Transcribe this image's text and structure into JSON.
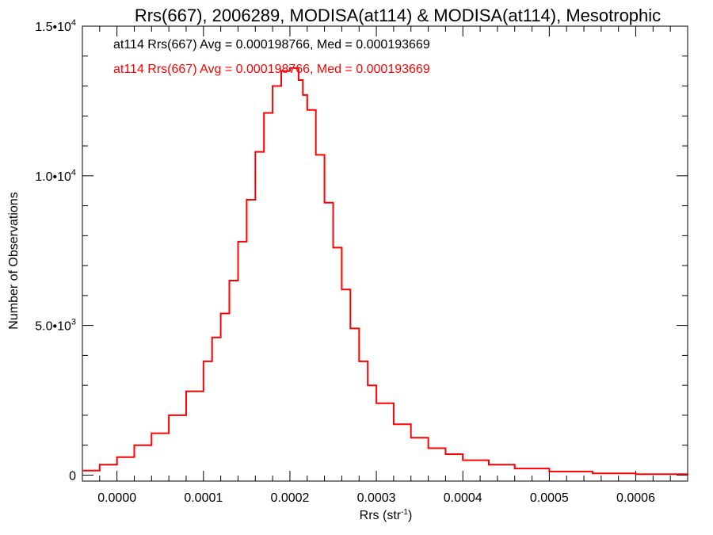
{
  "chart_data": {
    "type": "line",
    "title": "Rrs(667), 2006289, MODISA(at114) & MODISA(at114), Mesotrophic",
    "xlabel": {
      "base": "Rrs (str",
      "sup": "-1",
      "close": ")"
    },
    "ylabel": "Number of Observations",
    "xlim": [
      -4e-05,
      0.00066
    ],
    "ylim": [
      -200,
      15000
    ],
    "x_ticks": [
      {
        "value": 0.0,
        "label": "0.0000"
      },
      {
        "value": 0.0001,
        "label": "0.0001"
      },
      {
        "value": 0.0002,
        "label": "0.0002"
      },
      {
        "value": 0.0003,
        "label": "0.0003"
      },
      {
        "value": 0.0004,
        "label": "0.0004"
      },
      {
        "value": 0.0005,
        "label": "0.0005"
      },
      {
        "value": 0.0006,
        "label": "0.0006"
      }
    ],
    "y_ticks": [
      {
        "value": 0,
        "base": "0",
        "exp": ""
      },
      {
        "value": 5000,
        "base": "5.0•10",
        "exp": "3"
      },
      {
        "value": 10000,
        "base": "1.0•10",
        "exp": "4"
      },
      {
        "value": 15000,
        "base": "1.5•10",
        "exp": "4"
      }
    ],
    "legend": [
      {
        "text": "at114 Rrs(667) Avg = 0.000198766, Med = 0.000193669",
        "color": "#000000"
      },
      {
        "text": "at114 Rrs(667) Avg = 0.000198766, Med = 0.000193669",
        "color": "#ff0000"
      }
    ],
    "grid": false,
    "series": [
      {
        "color": "#ff0000",
        "step": true,
        "x": [
          -4e-05,
          -2e-05,
          0.0,
          2e-05,
          4e-05,
          6e-05,
          8e-05,
          0.0001,
          0.00011,
          0.00012,
          0.00013,
          0.00014,
          0.00015,
          0.00016,
          0.00017,
          0.00018,
          0.00019,
          0.0002,
          0.00021,
          0.000215,
          0.00022,
          0.00023,
          0.00024,
          0.00025,
          0.00026,
          0.00027,
          0.00028,
          0.00029,
          0.0003,
          0.00032,
          0.00034,
          0.00036,
          0.00038,
          0.0004,
          0.00043,
          0.00046,
          0.0005,
          0.00055,
          0.0006,
          0.00066
        ],
        "y": [
          150,
          350,
          600,
          1000,
          1400,
          2000,
          2800,
          3800,
          4600,
          5400,
          6500,
          7800,
          9200,
          10800,
          12100,
          13000,
          13500,
          13600,
          13200,
          12700,
          12200,
          10700,
          9100,
          7600,
          6200,
          4900,
          3800,
          3000,
          2400,
          1700,
          1250,
          900,
          700,
          500,
          350,
          220,
          120,
          60,
          30,
          10
        ]
      }
    ]
  }
}
